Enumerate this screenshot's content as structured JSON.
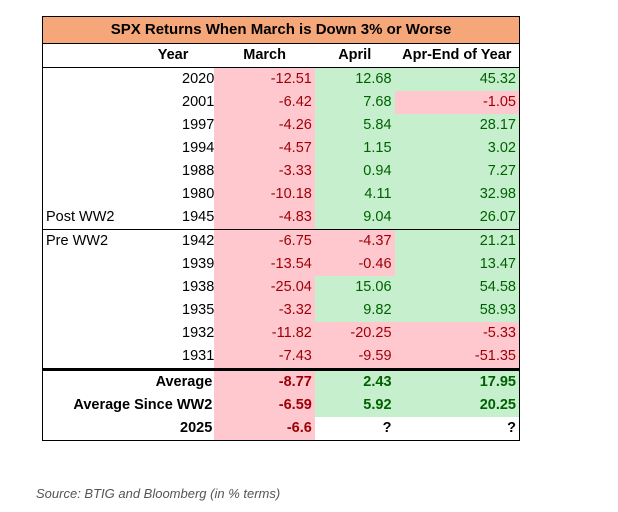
{
  "table": {
    "title": "SPX Returns When March is Down 3% or Worse",
    "headers": [
      "Year",
      "March",
      "April",
      "Apr-End of Year"
    ],
    "group_labels": {
      "post": "Post WW2",
      "pre": "Pre WW2"
    },
    "post_rows": [
      {
        "year": "2020",
        "march": "-12.51",
        "april": "12.68",
        "rest": "45.32"
      },
      {
        "year": "2001",
        "march": "-6.42",
        "april": "7.68",
        "rest": "-1.05"
      },
      {
        "year": "1997",
        "march": "-4.26",
        "april": "5.84",
        "rest": "28.17"
      },
      {
        "year": "1994",
        "march": "-4.57",
        "april": "1.15",
        "rest": "3.02"
      },
      {
        "year": "1988",
        "march": "-3.33",
        "april": "0.94",
        "rest": "7.27"
      },
      {
        "year": "1980",
        "march": "-10.18",
        "april": "4.11",
        "rest": "32.98"
      },
      {
        "year": "1945",
        "march": "-4.83",
        "april": "9.04",
        "rest": "26.07"
      }
    ],
    "pre_rows": [
      {
        "year": "1942",
        "march": "-6.75",
        "april": "-4.37",
        "rest": "21.21"
      },
      {
        "year": "1939",
        "march": "-13.54",
        "april": "-0.46",
        "rest": "13.47"
      },
      {
        "year": "1938",
        "march": "-25.04",
        "april": "15.06",
        "rest": "54.58"
      },
      {
        "year": "1935",
        "march": "-3.32",
        "april": "9.82",
        "rest": "58.93"
      },
      {
        "year": "1932",
        "march": "-11.82",
        "april": "-20.25",
        "rest": "-5.33"
      },
      {
        "year": "1931",
        "march": "-7.43",
        "april": "-9.59",
        "rest": "-51.35"
      }
    ],
    "summary": [
      {
        "label": "Average",
        "march": "-8.77",
        "april": "2.43",
        "rest": "17.95"
      },
      {
        "label": "Average Since WW2",
        "march": "-6.59",
        "april": "5.92",
        "rest": "20.25"
      },
      {
        "label": "2025",
        "march": "-6.6",
        "april": "?",
        "rest": "?"
      }
    ]
  },
  "source": "Source: BTIG and Bloomberg (in % terms)",
  "colors": {
    "title_bg": "#f5a77a",
    "negative_bg": "#ffc7ce",
    "negative_text": "#9c0006",
    "positive_bg": "#c6efce",
    "positive_text": "#006100"
  }
}
